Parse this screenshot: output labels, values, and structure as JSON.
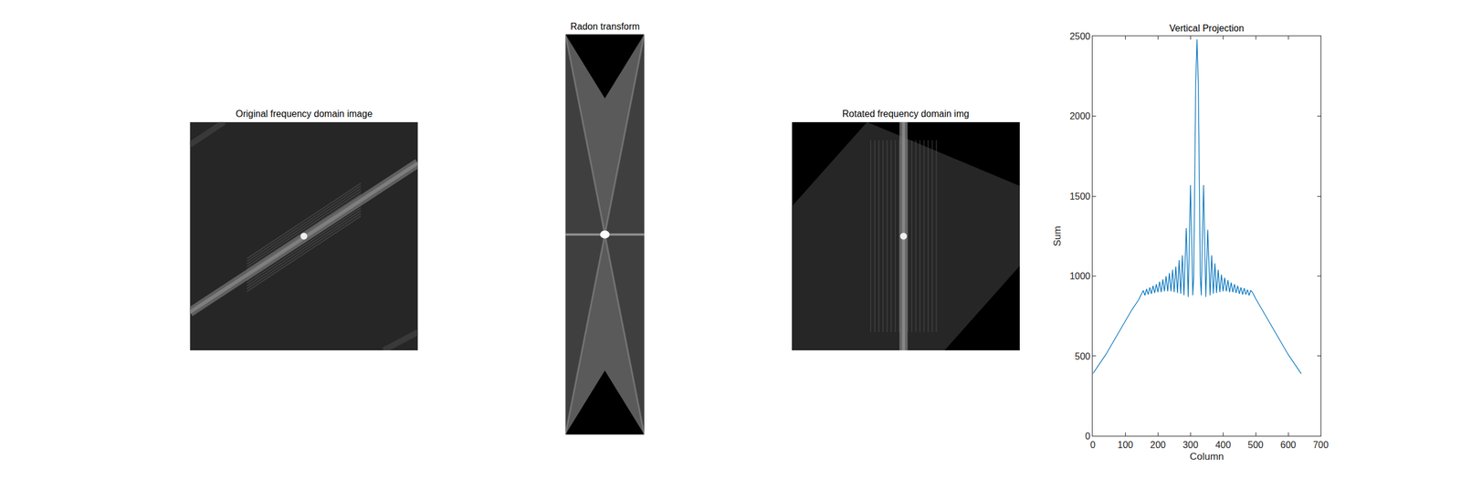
{
  "chart_data": [
    {
      "type": "image",
      "title": "Original frequency domain image"
    },
    {
      "type": "image",
      "title": "Radon transform"
    },
    {
      "type": "image",
      "title": "Rotated frequency domain img"
    },
    {
      "type": "line",
      "title": "Vertical Projection",
      "x_label": "Column",
      "y_label": "Sum",
      "color": "#0072bd",
      "x": [
        0,
        10,
        20,
        40,
        60,
        80,
        100,
        120,
        140,
        150,
        155,
        160,
        165,
        170,
        175,
        180,
        185,
        190,
        195,
        200,
        205,
        210,
        215,
        220,
        225,
        230,
        235,
        240,
        245,
        250,
        255,
        260,
        265,
        270,
        275,
        280,
        287,
        293,
        300,
        307,
        310,
        313,
        316,
        320,
        324,
        327,
        330,
        333,
        340,
        347,
        353,
        360,
        365,
        370,
        375,
        380,
        385,
        390,
        395,
        400,
        405,
        410,
        415,
        420,
        425,
        430,
        435,
        440,
        445,
        450,
        455,
        460,
        465,
        470,
        475,
        480,
        485,
        490,
        500,
        520,
        540,
        560,
        580,
        600,
        620,
        630,
        640
      ],
      "values": [
        390,
        420,
        450,
        510,
        580,
        650,
        720,
        790,
        850,
        890,
        910,
        880,
        920,
        885,
        930,
        890,
        940,
        895,
        950,
        900,
        965,
        900,
        980,
        905,
        1000,
        905,
        1020,
        905,
        1040,
        900,
        1060,
        895,
        1100,
        890,
        1130,
        880,
        1300,
        870,
        1570,
        880,
        1000,
        1600,
        2200,
        2480,
        2200,
        1600,
        1000,
        880,
        1570,
        870,
        1290,
        880,
        1130,
        890,
        1080,
        895,
        1040,
        900,
        1010,
        905,
        990,
        905,
        975,
        900,
        960,
        900,
        950,
        895,
        940,
        890,
        930,
        885,
        925,
        885,
        915,
        880,
        910,
        900,
        860,
        790,
        720,
        650,
        580,
        510,
        450,
        420,
        390
      ],
      "xlim": [
        0,
        700
      ],
      "xticks": [
        0,
        100,
        200,
        300,
        400,
        500,
        600,
        700
      ],
      "ylim": [
        0,
        2500
      ],
      "yticks": [
        0,
        500,
        1000,
        1500,
        2000,
        2500
      ]
    }
  ]
}
